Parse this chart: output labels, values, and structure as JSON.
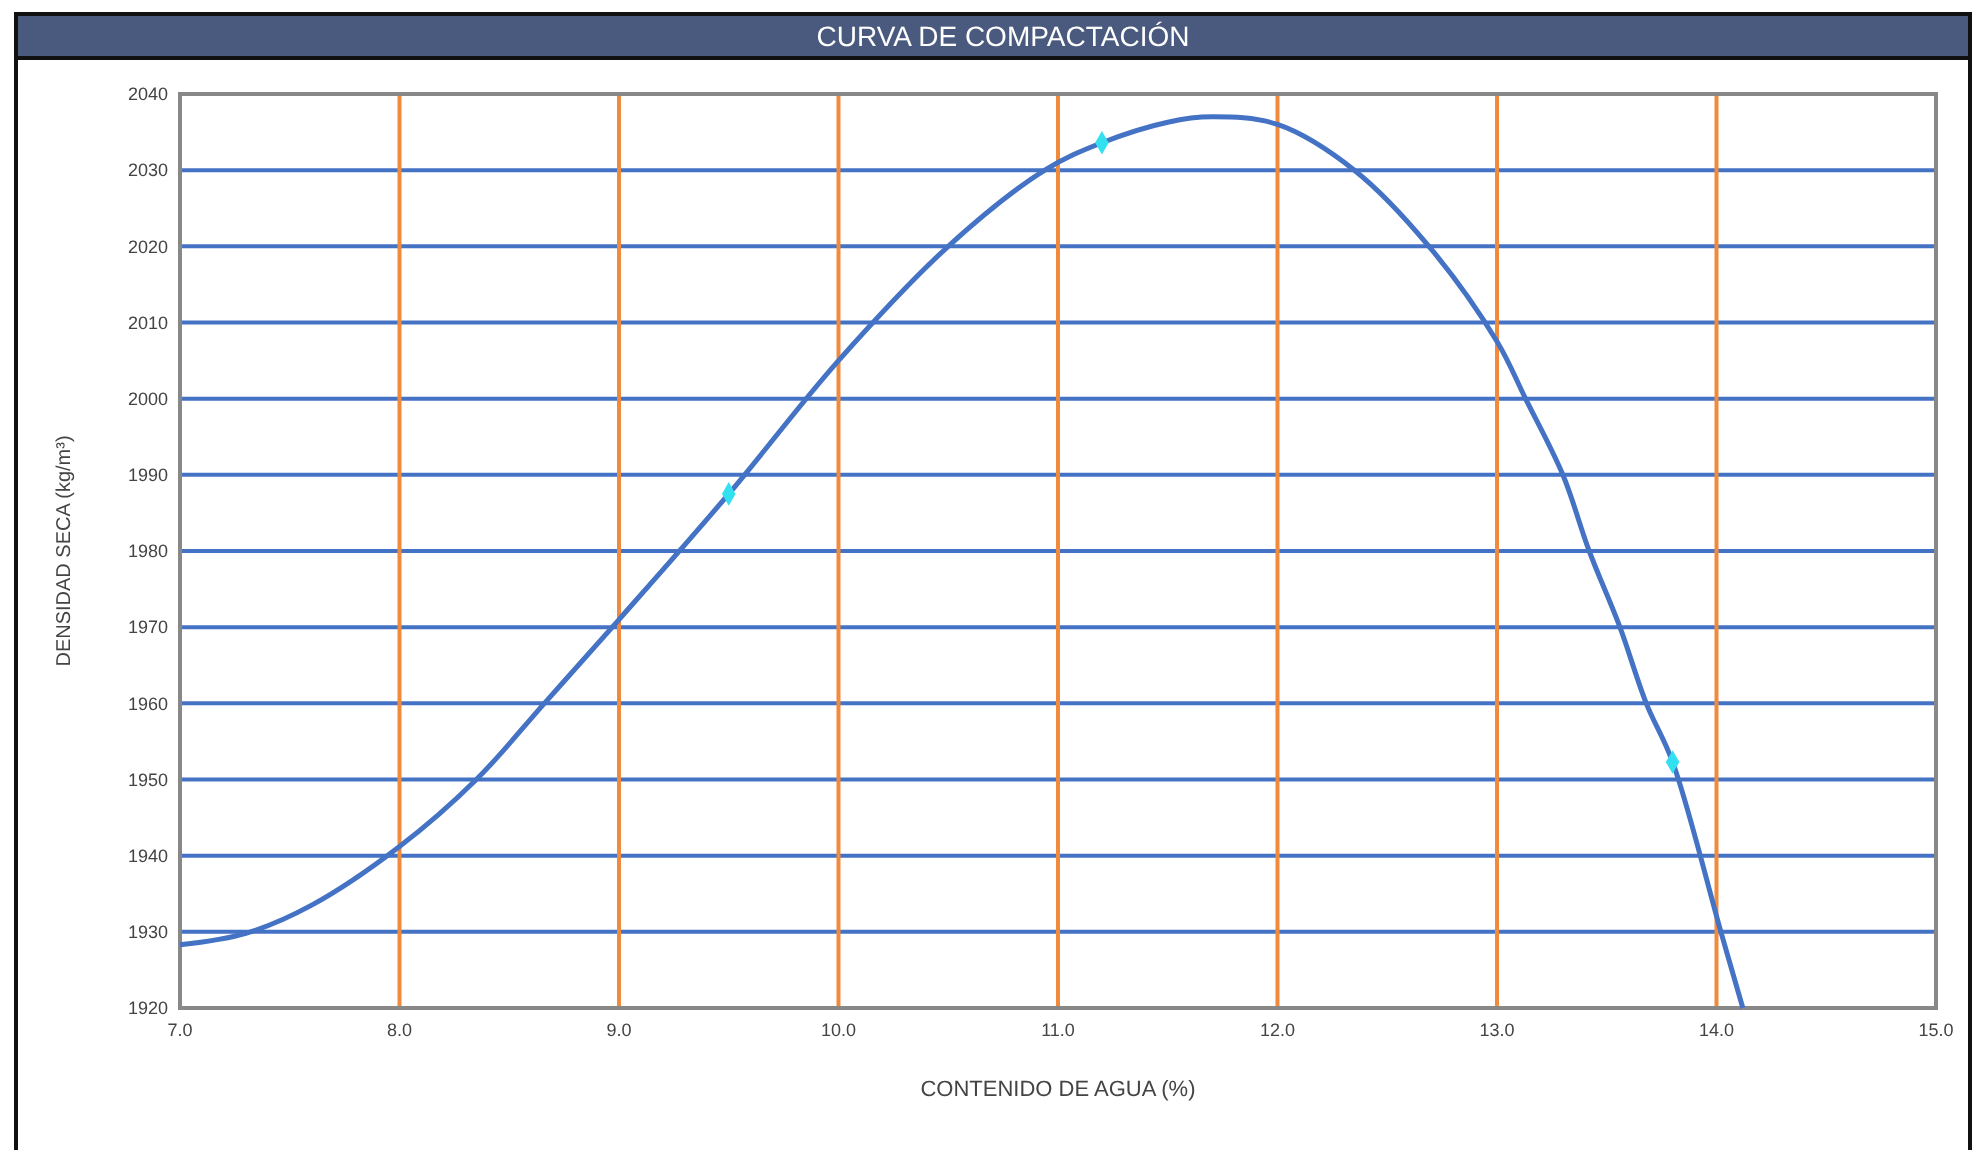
{
  "chart_data": {
    "type": "line",
    "title": "CURVA DE COMPACTACIÓN",
    "xlabel": "CONTENIDO DE AGUA (%)",
    "ylabel": "DENSIDAD SECA (kg/m³)",
    "xlim": [
      7,
      15
    ],
    "ylim": [
      1920,
      2040
    ],
    "xticks": [
      {
        "value": 7,
        "label": "7.0"
      },
      {
        "value": 8,
        "label": "8.0"
      },
      {
        "value": 9,
        "label": "9.0"
      },
      {
        "value": 10,
        "label": "10.0"
      },
      {
        "value": 11,
        "label": "11.0"
      },
      {
        "value": 12,
        "label": "12.0"
      },
      {
        "value": 13,
        "label": "13.0"
      },
      {
        "value": 14,
        "label": "14.0"
      },
      {
        "value": 15,
        "label": "15.0"
      }
    ],
    "yticks": [
      1920,
      1930,
      1940,
      1950,
      1960,
      1970,
      1980,
      1990,
      2000,
      2010,
      2020,
      2030,
      2040
    ],
    "grid": true,
    "line_style": "solid",
    "series": [
      {
        "color": "#4472c4",
        "marker": "none",
        "x": [
          7.0,
          7.3,
          7.6,
          8.0,
          8.35,
          8.66,
          9.0,
          9.5,
          10.0,
          10.5,
          10.94,
          11.2,
          11.5,
          11.7,
          12.0,
          12.35,
          12.69,
          13.0,
          13.13,
          13.3,
          13.42,
          13.56,
          13.68,
          13.8,
          14.02,
          14.12
        ],
        "values": [
          1928.3,
          1929.8,
          1933.5,
          1941.2,
          1950,
          1960,
          1971,
          1987.5,
          2005,
          2020,
          2030,
          2033.6,
          2036.3,
          2037,
          2036,
          2030,
          2020,
          2007.5,
          2000,
          1990,
          1980,
          1970,
          1960,
          1952.3,
          1930,
          1920
        ]
      },
      {
        "type": "scatter",
        "color": "#33e0f0",
        "marker": "diamond",
        "x": [
          9.5,
          11.2,
          13.8
        ],
        "values": [
          1987.5,
          2033.6,
          1952.3
        ]
      }
    ]
  }
}
